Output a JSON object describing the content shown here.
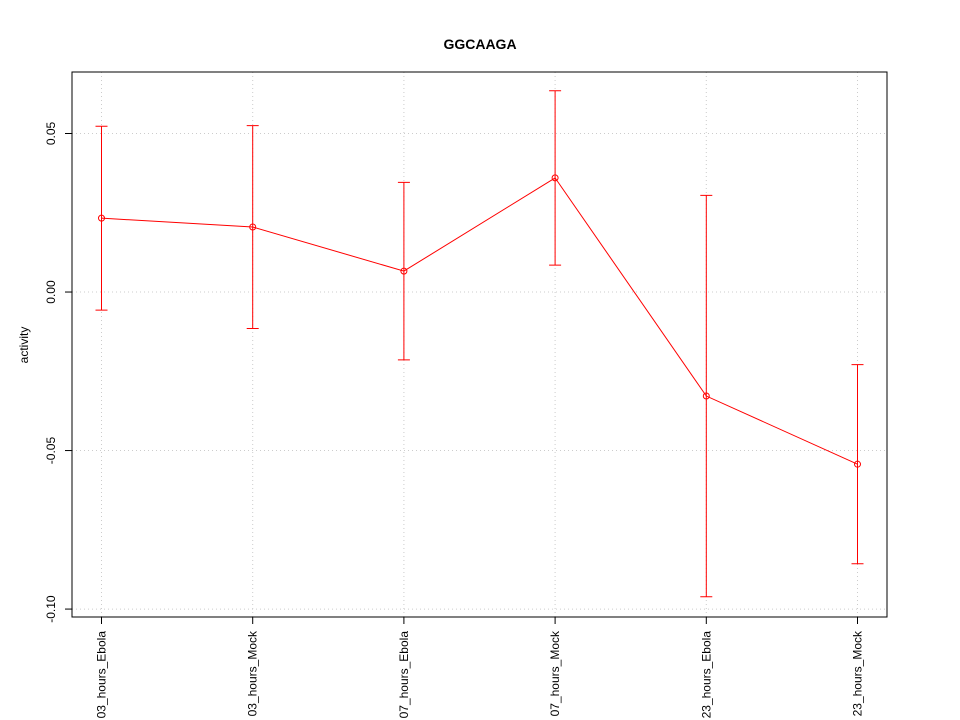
{
  "chart_data": {
    "type": "line",
    "title": "GGCAAGA",
    "y_label": "activity",
    "categories": [
      "03_hours_Ebola",
      "03_hours_Mock",
      "07_hours_Ebola",
      "07_hours_Mock",
      "23_hours_Ebola",
      "23_hours_Mock"
    ],
    "series": [
      {
        "color": "#ff0000",
        "values": [
          0.0233,
          0.0205,
          0.0066,
          0.036,
          -0.0328,
          -0.0543
        ],
        "errors": [
          0.029,
          0.032,
          0.028,
          0.0275,
          0.0633,
          0.0314
        ]
      }
    ],
    "ylim": [
      -0.1025,
      0.0694
    ],
    "yticks": [
      {
        "value": -0.1,
        "label": "-0.10"
      },
      -0.05,
      {
        "value": 0,
        "label": "0.00"
      },
      0.05
    ],
    "grid": true
  }
}
